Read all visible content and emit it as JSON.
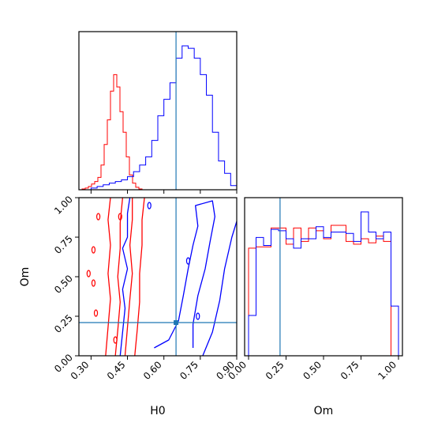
{
  "chart_data": [
    {
      "type": "histogram",
      "panel": "H0 marginal",
      "xlim": [
        0.25,
        0.9
      ],
      "series": [
        {
          "name": "",
          "color": "#ff0000",
          "bins": [
            0.25,
            0.263,
            0.276,
            0.289,
            0.302,
            0.315,
            0.328,
            0.341,
            0.354,
            0.367,
            0.38,
            0.393,
            0.406,
            0.419,
            0.432,
            0.445,
            0.458,
            0.471,
            0.484,
            0.497,
            0.51,
            0.523
          ],
          "counts": [
            0,
            1,
            2,
            4,
            7,
            10,
            15,
            30,
            55,
            85,
            120,
            140,
            125,
            95,
            70,
            40,
            18,
            8,
            3,
            1,
            0
          ]
        },
        {
          "name": "",
          "color": "#0000ff",
          "bins": [
            0.3,
            0.325,
            0.35,
            0.375,
            0.4,
            0.425,
            0.45,
            0.475,
            0.5,
            0.525,
            0.55,
            0.575,
            0.6,
            0.625,
            0.65,
            0.675,
            0.7,
            0.725,
            0.75,
            0.775,
            0.8,
            0.825,
            0.85,
            0.875,
            0.9
          ],
          "counts": [
            2,
            4,
            6,
            8,
            10,
            12,
            16,
            22,
            30,
            40,
            60,
            90,
            110,
            130,
            160,
            175,
            172,
            160,
            140,
            115,
            70,
            35,
            20,
            5
          ]
        }
      ],
      "truth": 0.65
    },
    {
      "type": "contour",
      "panel": "H0 vs Om",
      "xlabel": "H0",
      "ylabel": "Om",
      "xlim": [
        0.25,
        0.9
      ],
      "ylim": [
        0.0,
        1.0
      ],
      "xticks": [
        "0.30",
        "0.45",
        "0.60",
        "0.75",
        "0.90"
      ],
      "yticks": [
        "0.00",
        "0.25",
        "0.50",
        "0.75",
        "1.00"
      ],
      "truth": {
        "x": 0.65,
        "y": 0.21
      },
      "series": [
        {
          "name": "",
          "color": "#ff0000",
          "contours": [
            [
              [
                0.36,
                0.0
              ],
              [
                0.37,
                0.18
              ],
              [
                0.38,
                0.36
              ],
              [
                0.37,
                0.52
              ],
              [
                0.38,
                0.7
              ],
              [
                0.37,
                0.86
              ],
              [
                0.38,
                1.0
              ]
            ],
            [
              [
                0.4,
                0.0
              ],
              [
                0.41,
                0.16
              ],
              [
                0.42,
                0.34
              ],
              [
                0.41,
                0.5
              ],
              [
                0.42,
                0.68
              ],
              [
                0.42,
                0.84
              ],
              [
                0.43,
                1.0
              ]
            ],
            [
              [
                0.44,
                0.0
              ],
              [
                0.45,
                0.18
              ],
              [
                0.46,
                0.36
              ],
              [
                0.47,
                0.52
              ],
              [
                0.46,
                0.7
              ],
              [
                0.47,
                0.86
              ],
              [
                0.47,
                1.0
              ]
            ],
            [
              [
                0.48,
                0.0
              ],
              [
                0.49,
                0.16
              ],
              [
                0.5,
                0.34
              ],
              [
                0.5,
                0.52
              ],
              [
                0.51,
                0.7
              ],
              [
                0.51,
                0.86
              ],
              [
                0.52,
                1.0
              ]
            ]
          ],
          "islands": [
            [
              0.29,
              0.52
            ],
            [
              0.32,
              0.27
            ],
            [
              0.31,
              0.46
            ],
            [
              0.31,
              0.67
            ],
            [
              0.33,
              0.88
            ],
            [
              0.4,
              0.1
            ],
            [
              0.42,
              0.88
            ]
          ]
        },
        {
          "name": "",
          "color": "#0000ff",
          "contours": [
            [
              [
                0.42,
                0.0
              ],
              [
                0.43,
                0.15
              ],
              [
                0.44,
                0.3
              ],
              [
                0.43,
                0.42
              ],
              [
                0.45,
                0.55
              ],
              [
                0.43,
                0.68
              ],
              [
                0.45,
                0.75
              ],
              [
                0.45,
                0.9
              ],
              [
                0.46,
                1.0
              ]
            ],
            [
              [
                0.56,
                0.05
              ],
              [
                0.62,
                0.1
              ],
              [
                0.66,
                0.22
              ],
              [
                0.68,
                0.38
              ],
              [
                0.7,
                0.55
              ],
              [
                0.72,
                0.7
              ],
              [
                0.74,
                0.82
              ],
              [
                0.73,
                0.95
              ],
              [
                0.8,
                0.98
              ],
              [
                0.81,
                0.88
              ],
              [
                0.79,
                0.72
              ],
              [
                0.77,
                0.55
              ],
              [
                0.74,
                0.38
              ],
              [
                0.72,
                0.2
              ],
              [
                0.72,
                0.05
              ]
            ],
            [
              [
                0.76,
                0.0
              ],
              [
                0.8,
                0.15
              ],
              [
                0.83,
                0.35
              ],
              [
                0.85,
                0.55
              ],
              [
                0.88,
                0.75
              ],
              [
                0.9,
                0.85
              ]
            ]
          ],
          "islands": [
            [
              0.54,
              0.95
            ],
            [
              0.7,
              0.6
            ],
            [
              0.74,
              0.25
            ]
          ]
        }
      ]
    },
    {
      "type": "histogram",
      "panel": "Om marginal",
      "xlabel": "Om",
      "xlim": [
        0.0,
        1.0
      ],
      "xticks": [
        "0.00",
        "0.25",
        "0.50",
        "0.75",
        "1.00"
      ],
      "series": [
        {
          "name": "",
          "color": "#ff0000",
          "bins": [
            0.0,
            0.05,
            0.1,
            0.15,
            0.2,
            0.25,
            0.3,
            0.35,
            0.4,
            0.45,
            0.5,
            0.55,
            0.6,
            0.65,
            0.7,
            0.75,
            0.8,
            0.85,
            0.9,
            0.95,
            1.0
          ],
          "counts": [
            0.8,
            0.81,
            0.81,
            0.95,
            0.95,
            0.83,
            0.95,
            0.85,
            0.95,
            0.93,
            0.87,
            0.97,
            0.97,
            0.85,
            0.83,
            0.87,
            0.84,
            0.89,
            0.85,
            0.0
          ]
        },
        {
          "name": "",
          "color": "#0000ff",
          "bins": [
            0.0,
            0.05,
            0.1,
            0.15,
            0.2,
            0.25,
            0.3,
            0.35,
            0.4,
            0.45,
            0.5,
            0.55,
            0.6,
            0.65,
            0.7,
            0.75,
            0.8,
            0.85,
            0.9,
            0.95,
            1.0
          ],
          "counts": [
            0.3,
            0.88,
            0.82,
            0.94,
            0.93,
            0.87,
            0.8,
            0.87,
            0.87,
            0.96,
            0.88,
            0.92,
            0.92,
            0.91,
            0.85,
            1.07,
            0.92,
            0.87,
            0.92,
            0.37
          ]
        }
      ],
      "truth": 0.21
    }
  ]
}
